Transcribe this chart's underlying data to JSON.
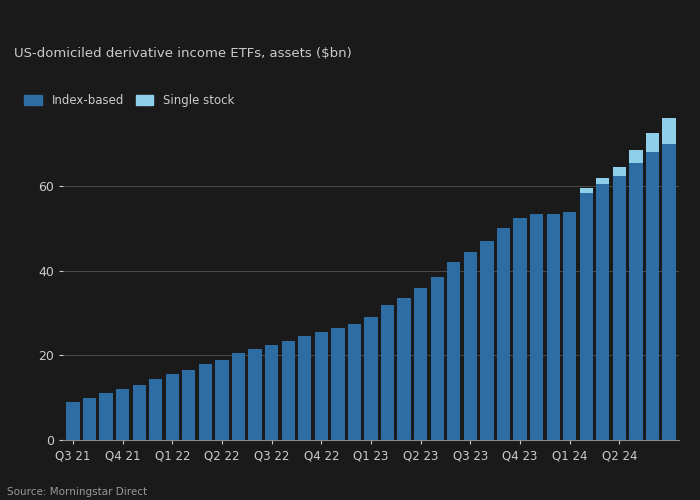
{
  "index_based": [
    9.0,
    10.0,
    11.0,
    12.0,
    13.0,
    14.5,
    15.5,
    16.5,
    18.0,
    19.0,
    20.5,
    21.5,
    22.5,
    23.5,
    24.5,
    25.5,
    26.5,
    27.5,
    29.0,
    32.0,
    33.5,
    36.0,
    38.5,
    42.0,
    44.5,
    47.0,
    50.0,
    52.5,
    53.5,
    53.5,
    54.0,
    58.5,
    60.5,
    62.5,
    65.5,
    68.0,
    70.0
  ],
  "single_stock": [
    0,
    0,
    0,
    0,
    0,
    0,
    0,
    0,
    0,
    0,
    0,
    0,
    0,
    0,
    0,
    0,
    0,
    0,
    0,
    0,
    0,
    0,
    0,
    0,
    0,
    0,
    0,
    0,
    0,
    0,
    0,
    1.0,
    1.5,
    2.0,
    3.0,
    4.5,
    6.0
  ],
  "xtick_positions": [
    0,
    3,
    6,
    9,
    12,
    15,
    18,
    21,
    24,
    27,
    30,
    33
  ],
  "xtick_labels": [
    "Q3 21",
    "Q4 21",
    "Q1 22",
    "Q2 22",
    "Q3 22",
    "Q4 22",
    "Q1 23",
    "Q2 23",
    "Q3 23",
    "Q4 23",
    "Q1 24",
    "Q2 24"
  ],
  "yticks": [
    0,
    20,
    40,
    60
  ],
  "ylim": [
    0,
    78
  ],
  "title": "US-domiciled derivative income ETFs, assets ($bn)",
  "index_color": "#2e6da4",
  "single_stock_color": "#8fcfea",
  "background_color": "#1a1a1a",
  "plot_bg_color": "#1a1a1a",
  "text_color": "#cccccc",
  "grid_color": "#888888",
  "source_text": "Source: Morningstar Direct",
  "legend_index": "Index-based",
  "legend_single": "Single stock",
  "bar_width": 0.8
}
